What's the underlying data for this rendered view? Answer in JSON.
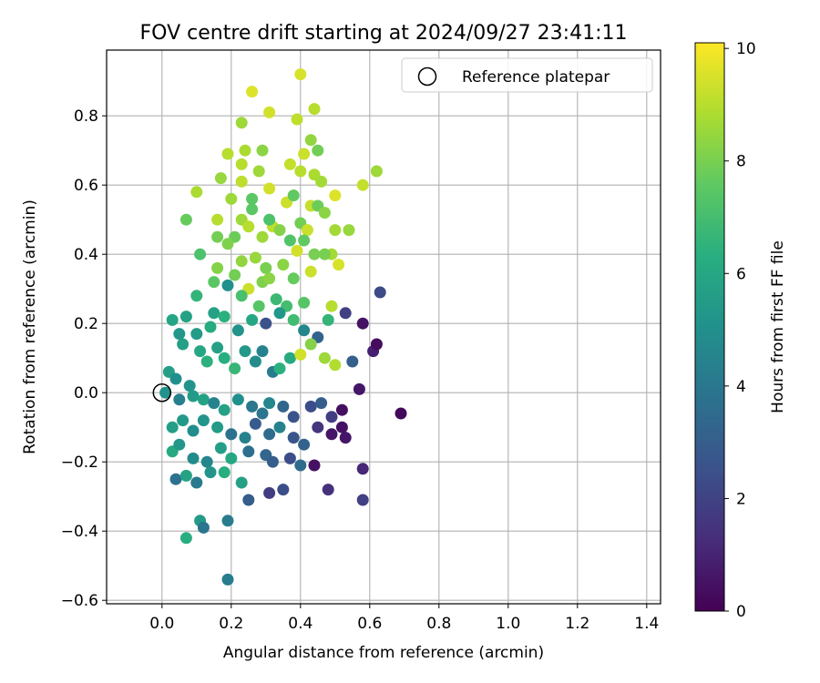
{
  "chart_data": {
    "type": "scatter",
    "title": "FOV centre drift starting at 2024/09/27 23:41:11",
    "xlabel": "Angular distance from reference (arcmin)",
    "ylabel": "Rotation from reference (arcmin)",
    "xlim": [
      -0.16,
      1.44
    ],
    "ylim": [
      -0.61,
      0.99
    ],
    "xticks": [
      0.0,
      0.2,
      0.4,
      0.6,
      0.8,
      1.0,
      1.2,
      1.4
    ],
    "xtick_labels": [
      "0.0",
      "0.2",
      "0.4",
      "0.6",
      "0.8",
      "1.0",
      "1.2",
      "1.4"
    ],
    "yticks": [
      -0.6,
      -0.4,
      -0.2,
      0.0,
      0.2,
      0.4,
      0.6,
      0.8
    ],
    "ytick_labels": [
      "−0.6",
      "−0.4",
      "−0.2",
      "0.0",
      "0.2",
      "0.4",
      "0.6",
      "0.8"
    ],
    "grid": true,
    "legend": {
      "position": "top-right",
      "entries": [
        "Reference platepar"
      ]
    },
    "reference_point": {
      "label": "Reference platepar",
      "x": 0.0,
      "y": 0.0,
      "marker": "open-circle"
    },
    "colorbar": {
      "label": "Hours from first FF file",
      "colormap": "viridis",
      "range": [
        0,
        10.1
      ],
      "ticks": [
        0,
        2,
        4,
        6,
        8,
        10
      ],
      "tick_labels": [
        "0",
        "2",
        "4",
        "6",
        "8",
        "10"
      ]
    },
    "series": [
      {
        "columns": [
          "x",
          "y",
          "hours"
        ],
        "points": [
          [
            0.1,
            0.28,
            6.6
          ],
          [
            0.62,
            0.64,
            8.6
          ],
          [
            0.58,
            0.6,
            9.2
          ],
          [
            0.4,
            0.92,
            9.5
          ],
          [
            0.26,
            0.87,
            9.6
          ],
          [
            0.31,
            0.81,
            9.4
          ],
          [
            0.39,
            0.79,
            9.1
          ],
          [
            0.44,
            0.82,
            9.0
          ],
          [
            0.23,
            0.78,
            8.6
          ],
          [
            0.43,
            0.73,
            8.4
          ],
          [
            0.45,
            0.7,
            7.9
          ],
          [
            0.41,
            0.69,
            9.3
          ],
          [
            0.37,
            0.66,
            9.2
          ],
          [
            0.19,
            0.69,
            9.0
          ],
          [
            0.24,
            0.7,
            8.8
          ],
          [
            0.29,
            0.7,
            8.3
          ],
          [
            0.23,
            0.66,
            9.0
          ],
          [
            0.28,
            0.64,
            8.6
          ],
          [
            0.44,
            0.63,
            8.8
          ],
          [
            0.46,
            0.61,
            8.7
          ],
          [
            0.17,
            0.62,
            8.5
          ],
          [
            0.23,
            0.61,
            9.1
          ],
          [
            0.4,
            0.64,
            9.0
          ],
          [
            0.1,
            0.58,
            8.8
          ],
          [
            0.2,
            0.56,
            8.6
          ],
          [
            0.26,
            0.56,
            7.5
          ],
          [
            0.31,
            0.59,
            9.4
          ],
          [
            0.36,
            0.55,
            9.3
          ],
          [
            0.38,
            0.57,
            7.6
          ],
          [
            0.43,
            0.54,
            9.2
          ],
          [
            0.45,
            0.54,
            7.8
          ],
          [
            0.5,
            0.57,
            9.6
          ],
          [
            0.07,
            0.5,
            7.7
          ],
          [
            0.16,
            0.5,
            9.0
          ],
          [
            0.23,
            0.5,
            8.6
          ],
          [
            0.26,
            0.53,
            7.5
          ],
          [
            0.32,
            0.48,
            9.1
          ],
          [
            0.34,
            0.47,
            8.2
          ],
          [
            0.4,
            0.49,
            7.9
          ],
          [
            0.42,
            0.47,
            9.3
          ],
          [
            0.47,
            0.52,
            8.3
          ],
          [
            0.5,
            0.47,
            8.7
          ],
          [
            0.54,
            0.47,
            8.5
          ],
          [
            0.16,
            0.45,
            7.9
          ],
          [
            0.21,
            0.45,
            7.8
          ],
          [
            0.25,
            0.48,
            9.0
          ],
          [
            0.29,
            0.45,
            8.6
          ],
          [
            0.31,
            0.5,
            7.2
          ],
          [
            0.39,
            0.41,
            9.4
          ],
          [
            0.44,
            0.4,
            8.0
          ],
          [
            0.49,
            0.4,
            8.7
          ],
          [
            0.11,
            0.4,
            7.2
          ],
          [
            0.19,
            0.43,
            8.1
          ],
          [
            0.23,
            0.38,
            8.4
          ],
          [
            0.27,
            0.39,
            8.5
          ],
          [
            0.3,
            0.36,
            8.0
          ],
          [
            0.35,
            0.37,
            8.3
          ],
          [
            0.37,
            0.44,
            7.3
          ],
          [
            0.41,
            0.44,
            7.6
          ],
          [
            0.16,
            0.36,
            8.2
          ],
          [
            0.21,
            0.34,
            7.9
          ],
          [
            0.25,
            0.3,
            9.3
          ],
          [
            0.29,
            0.32,
            8.1
          ],
          [
            0.31,
            0.33,
            8.3
          ],
          [
            0.38,
            0.33,
            7.7
          ],
          [
            0.43,
            0.35,
            9.3
          ],
          [
            0.47,
            0.4,
            8.0
          ],
          [
            0.51,
            0.37,
            9.5
          ],
          [
            0.15,
            0.32,
            7.5
          ],
          [
            0.19,
            0.31,
            5.0
          ],
          [
            0.23,
            0.28,
            7.1
          ],
          [
            0.28,
            0.25,
            7.4
          ],
          [
            0.33,
            0.27,
            6.8
          ],
          [
            0.36,
            0.25,
            7.0
          ],
          [
            0.41,
            0.26,
            7.4
          ],
          [
            0.49,
            0.25,
            9.0
          ],
          [
            0.03,
            0.21,
            5.9
          ],
          [
            0.05,
            0.17,
            5.3
          ],
          [
            0.07,
            0.22,
            5.8
          ],
          [
            0.1,
            0.17,
            5.5
          ],
          [
            0.14,
            0.19,
            6.2
          ],
          [
            0.15,
            0.23,
            5.8
          ],
          [
            0.18,
            0.22,
            6.4
          ],
          [
            0.22,
            0.18,
            5.2
          ],
          [
            0.26,
            0.21,
            6.0
          ],
          [
            0.3,
            0.2,
            2.5
          ],
          [
            0.34,
            0.23,
            5.3
          ],
          [
            0.38,
            0.21,
            6.9
          ],
          [
            0.41,
            0.18,
            4.6
          ],
          [
            0.45,
            0.16,
            3.2
          ],
          [
            0.48,
            0.21,
            6.6
          ],
          [
            0.53,
            0.23,
            1.9
          ],
          [
            0.58,
            0.2,
            0.5
          ],
          [
            0.63,
            0.29,
            2.3
          ],
          [
            0.02,
            0.06,
            5.6
          ],
          [
            0.04,
            0.04,
            5.0
          ],
          [
            0.08,
            0.02,
            5.2
          ],
          [
            0.06,
            0.14,
            5.7
          ],
          [
            0.11,
            0.12,
            6.0
          ],
          [
            0.13,
            0.09,
            6.4
          ],
          [
            0.16,
            0.13,
            5.7
          ],
          [
            0.18,
            0.1,
            6.3
          ],
          [
            0.21,
            0.07,
            6.7
          ],
          [
            0.24,
            0.12,
            5.4
          ],
          [
            0.27,
            0.09,
            4.9
          ],
          [
            0.29,
            0.12,
            4.5
          ],
          [
            0.32,
            0.06,
            4.2
          ],
          [
            0.34,
            0.07,
            6.4
          ],
          [
            0.37,
            0.1,
            6.1
          ],
          [
            0.4,
            0.11,
            9.4
          ],
          [
            0.43,
            0.14,
            8.2
          ],
          [
            0.47,
            0.1,
            8.6
          ],
          [
            0.5,
            0.08,
            8.9
          ],
          [
            0.55,
            0.09,
            3.1
          ],
          [
            0.61,
            0.12,
            0.9
          ],
          [
            0.62,
            0.14,
            0.3
          ],
          [
            0.01,
            0.0,
            5.1
          ],
          [
            0.05,
            -0.02,
            4.3
          ],
          [
            0.09,
            -0.01,
            5.5
          ],
          [
            0.12,
            -0.02,
            5.8
          ],
          [
            0.15,
            -0.03,
            4.5
          ],
          [
            0.18,
            -0.05,
            5.8
          ],
          [
            0.22,
            -0.02,
            5.0
          ],
          [
            0.26,
            -0.04,
            4.0
          ],
          [
            0.29,
            -0.06,
            3.9
          ],
          [
            0.31,
            -0.03,
            4.6
          ],
          [
            0.35,
            -0.04,
            3.3
          ],
          [
            0.38,
            -0.07,
            2.6
          ],
          [
            0.43,
            -0.04,
            2.4
          ],
          [
            0.46,
            -0.03,
            3.0
          ],
          [
            0.49,
            -0.07,
            1.8
          ],
          [
            0.52,
            -0.05,
            0.4
          ],
          [
            0.57,
            0.01,
            0.6
          ],
          [
            0.69,
            -0.06,
            0.2
          ],
          [
            0.03,
            -0.1,
            5.6
          ],
          [
            0.06,
            -0.08,
            5.4
          ],
          [
            0.09,
            -0.11,
            4.9
          ],
          [
            0.12,
            -0.08,
            5.2
          ],
          [
            0.16,
            -0.1,
            5.5
          ],
          [
            0.2,
            -0.12,
            3.8
          ],
          [
            0.24,
            -0.13,
            4.4
          ],
          [
            0.27,
            -0.09,
            2.9
          ],
          [
            0.31,
            -0.12,
            3.5
          ],
          [
            0.34,
            -0.1,
            4.5
          ],
          [
            0.38,
            -0.13,
            2.7
          ],
          [
            0.41,
            -0.15,
            3.2
          ],
          [
            0.45,
            -0.1,
            1.5
          ],
          [
            0.49,
            -0.12,
            0.6
          ],
          [
            0.52,
            -0.1,
            0.5
          ],
          [
            0.53,
            -0.13,
            0.6
          ],
          [
            0.03,
            -0.17,
            6.1
          ],
          [
            0.05,
            -0.15,
            5.3
          ],
          [
            0.09,
            -0.19,
            4.8
          ],
          [
            0.13,
            -0.2,
            4.6
          ],
          [
            0.17,
            -0.16,
            5.6
          ],
          [
            0.2,
            -0.19,
            6.0
          ],
          [
            0.25,
            -0.17,
            3.7
          ],
          [
            0.3,
            -0.18,
            3.3
          ],
          [
            0.32,
            -0.2,
            3.0
          ],
          [
            0.37,
            -0.19,
            2.4
          ],
          [
            0.4,
            -0.21,
            3.5
          ],
          [
            0.44,
            -0.21,
            0.5
          ],
          [
            0.58,
            -0.22,
            1.1
          ],
          [
            0.04,
            -0.25,
            3.8
          ],
          [
            0.07,
            -0.24,
            5.8
          ],
          [
            0.1,
            -0.26,
            4.1
          ],
          [
            0.14,
            -0.23,
            5.2
          ],
          [
            0.18,
            -0.23,
            6.3
          ],
          [
            0.23,
            -0.26,
            5.7
          ],
          [
            0.25,
            -0.31,
            3.0
          ],
          [
            0.31,
            -0.29,
            1.8
          ],
          [
            0.35,
            -0.28,
            2.4
          ],
          [
            0.48,
            -0.28,
            1.4
          ],
          [
            0.58,
            -0.31,
            1.9
          ],
          [
            0.11,
            -0.37,
            5.5
          ],
          [
            0.12,
            -0.39,
            3.9
          ],
          [
            0.19,
            -0.37,
            4.2
          ],
          [
            0.07,
            -0.42,
            6.3
          ],
          [
            0.19,
            -0.54,
            4.2
          ]
        ]
      }
    ]
  }
}
